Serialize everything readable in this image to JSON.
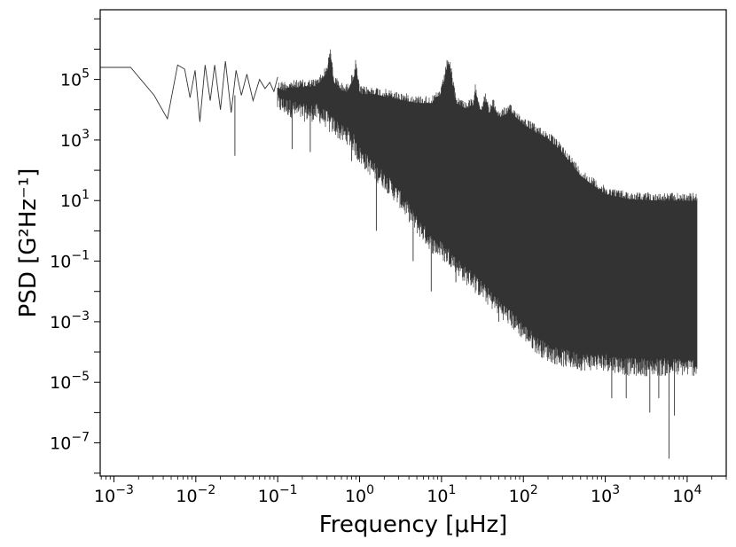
{
  "chart_data": {
    "type": "line",
    "xscale": "log",
    "yscale": "log",
    "xlabel": "Frequency [μHz]",
    "ylabel": "PSD [G²Hz⁻¹]",
    "title": "",
    "xlim": [
      0.00068,
      30000
    ],
    "ylim": [
      8e-09,
      20000000
    ],
    "grid": false,
    "legend": "none",
    "line_color": "#333333",
    "x_ticks": [
      {
        "value": 0.001,
        "base": "10",
        "exp": "−3"
      },
      {
        "value": 0.01,
        "base": "10",
        "exp": "−2"
      },
      {
        "value": 0.1,
        "base": "10",
        "exp": "−1"
      },
      {
        "value": 1,
        "base": "10",
        "exp": "0"
      },
      {
        "value": 10,
        "base": "10",
        "exp": "1"
      },
      {
        "value": 100,
        "base": "10",
        "exp": "2"
      },
      {
        "value": 1000,
        "base": "10",
        "exp": "3"
      },
      {
        "value": 10000,
        "base": "10",
        "exp": "4"
      }
    ],
    "y_ticks": [
      {
        "value": 1e-07,
        "base": "10",
        "exp": "−7"
      },
      {
        "value": 1e-05,
        "base": "10",
        "exp": "−5"
      },
      {
        "value": 0.001,
        "base": "10",
        "exp": "−3"
      },
      {
        "value": 0.1,
        "base": "10",
        "exp": "−1"
      },
      {
        "value": 10,
        "base": "10",
        "exp": "1"
      },
      {
        "value": 1000,
        "base": "10",
        "exp": "3"
      },
      {
        "value": 100000,
        "base": "10",
        "exp": "5"
      }
    ],
    "series": [
      {
        "low_freq_points": {
          "x": [
            0.00068,
            0.0016,
            0.0031,
            0.0045,
            0.006,
            0.0073,
            0.0085,
            0.0098,
            0.0112,
            0.013,
            0.015,
            0.017,
            0.02,
            0.023,
            0.027,
            0.031,
            0.036,
            0.042,
            0.05,
            0.06,
            0.07,
            0.08,
            0.09,
            0.1
          ],
          "y": [
            250000,
            250000,
            30000,
            5000,
            300000,
            220000,
            25000,
            200000,
            4000,
            300000,
            20000,
            300000,
            10000,
            400000,
            8000,
            200000,
            30000,
            150000,
            20000,
            100000,
            50000,
            80000,
            40000,
            120000
          ]
        },
        "envelope": {
          "x": [
            0.1,
            0.2,
            0.3,
            0.4,
            0.43,
            0.45,
            0.48,
            0.6,
            0.7,
            0.85,
            0.9,
            1,
            1.5,
            2,
            3,
            5,
            8,
            10,
            11,
            12,
            13,
            15,
            20,
            25,
            26,
            30,
            35,
            38,
            42,
            50,
            70,
            100,
            150,
            200,
            300,
            500,
            700,
            1000,
            2000,
            5000,
            10000,
            13000
          ],
          "upper": [
            90000,
            100000,
            110000,
            300000,
            1200000,
            800000,
            150000,
            80000,
            70000,
            200000,
            500000,
            60000,
            60000,
            50000,
            40000,
            30000,
            30000,
            60000,
            200000,
            700000,
            300000,
            30000,
            20000,
            25000,
            80000,
            15000,
            40000,
            12000,
            25000,
            10000,
            15000,
            6000,
            3000,
            2000,
            700,
            120,
            60,
            30,
            20,
            18,
            18,
            18
          ],
          "lower": [
            10000,
            5000,
            5000,
            3000,
            2000,
            2000,
            2000,
            1000,
            900,
            500,
            300,
            200,
            60,
            30,
            8,
            1,
            0.2,
            0.15,
            0.1,
            0.1,
            0.08,
            0.05,
            0.02,
            0.015,
            0.01,
            0.008,
            0.005,
            0.004,
            0.003,
            0.002,
            0.0008,
            0.0003,
            0.0001,
            6e-05,
            4e-05,
            3e-05,
            3e-05,
            3e-05,
            2e-05,
            2e-05,
            2e-05,
            2e-05
          ]
        },
        "dips": {
          "x": [
            0.03,
            0.15,
            0.25,
            0.8,
            1.6,
            4.5,
            7.5,
            15,
            50,
            300,
            900,
            1200,
            1800,
            2500,
            3500,
            4500,
            6000,
            7000
          ],
          "y": [
            300,
            500,
            400,
            200,
            1,
            0.1,
            0.01,
            0.02,
            0.001,
            0.0001,
            3e-05,
            3e-06,
            3e-06,
            2e-05,
            1e-06,
            3e-06,
            3e-08,
            8e-07
          ]
        }
      }
    ]
  }
}
